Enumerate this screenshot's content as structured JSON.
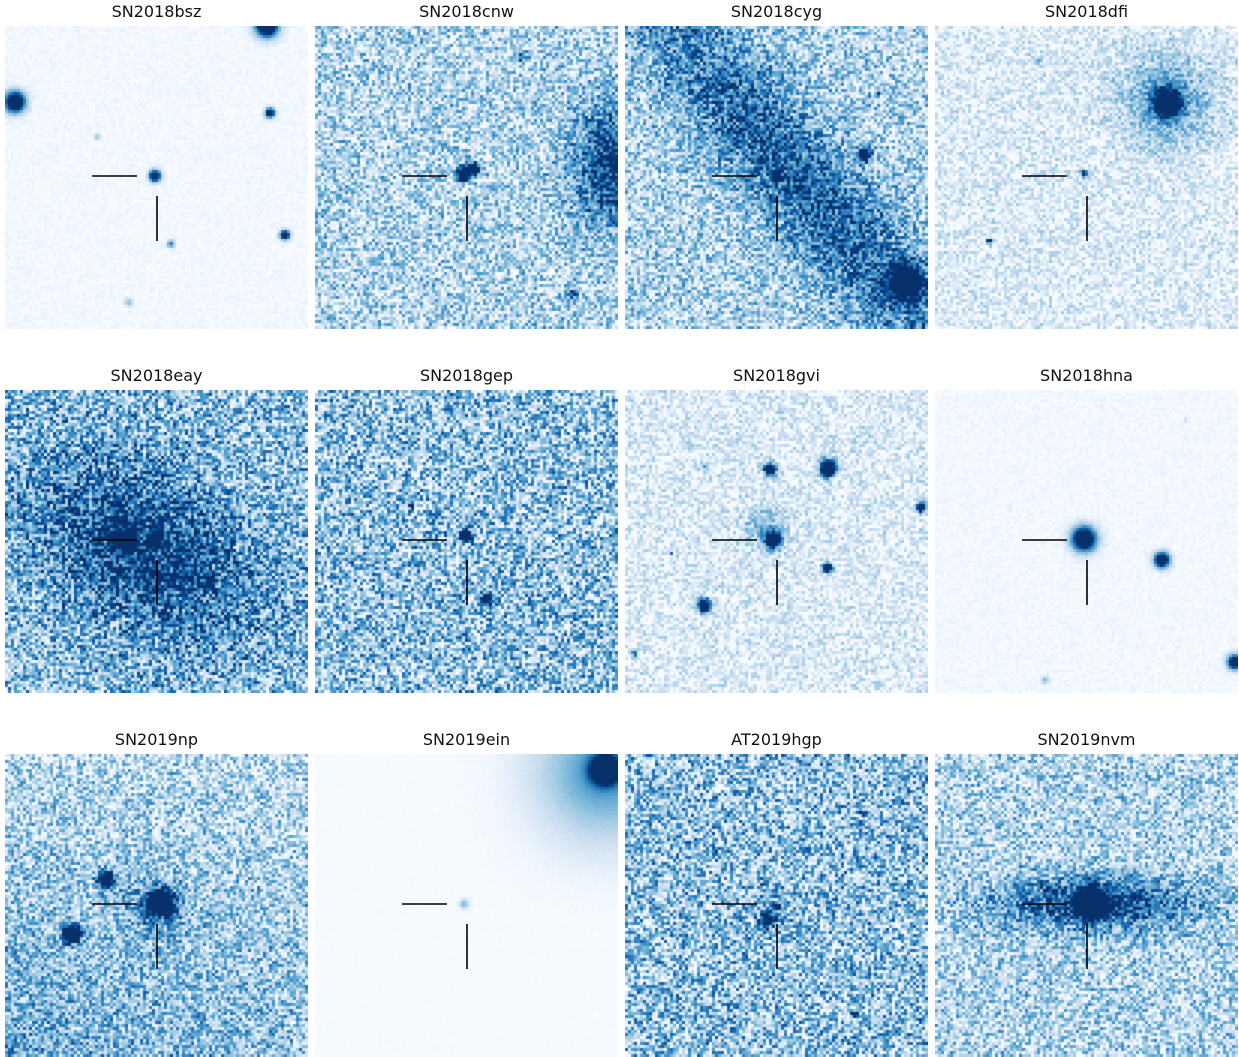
{
  "figure": {
    "colormap": "Blues",
    "marker_color": "#000000",
    "panels": [
      {
        "title": "SN2018bsz",
        "background": "faint",
        "host": null,
        "sources": [
          [
            150,
            150,
            6,
            1.0
          ],
          [
            262,
            0,
            12,
            1.0
          ],
          [
            10,
            76,
            11,
            1.0
          ],
          [
            265,
            87,
            5,
            0.95
          ],
          [
            280,
            209,
            5,
            0.95
          ],
          [
            166,
            218,
            4,
            0.45
          ],
          [
            92,
            111,
            3,
            0.3
          ],
          [
            124,
            276,
            4,
            0.3
          ]
        ]
      },
      {
        "title": "SN2018cnw",
        "background": "noisy",
        "host": [
          300,
          140,
          40,
          60,
          0,
          0.75
        ],
        "sources": [
          [
            148,
            148,
            7,
            0.95
          ],
          [
            158,
            143,
            8,
            0.6
          ],
          [
            206,
            31,
            5,
            0.4
          ],
          [
            258,
            268,
            6,
            0.4
          ]
        ]
      },
      {
        "title": "SN2018cyg",
        "background": "noisy",
        "host": [
          180,
          160,
          50,
          300,
          -40,
          0.55
        ],
        "sources": [
          [
            151,
            150,
            4,
            0.9
          ],
          [
            240,
            128,
            6,
            1.0
          ],
          [
            282,
            256,
            18,
            0.7
          ],
          [
            253,
            68,
            2,
            0.5
          ]
        ]
      },
      {
        "title": "SN2018dfi",
        "background": "noisy-light",
        "host": [
          232,
          75,
          45,
          45,
          0,
          0.45
        ],
        "sources": [
          [
            232,
            77,
            13,
            1.0
          ],
          [
            149,
            148,
            3,
            0.9
          ],
          [
            54,
            215,
            3,
            0.7
          ],
          [
            104,
            35,
            3,
            0.3
          ]
        ]
      },
      {
        "title": "SN2018eay",
        "background": "dense",
        "host": [
          140,
          160,
          120,
          75,
          35,
          0.6
        ],
        "sources": [
          [
            150,
            150,
            6,
            0.9
          ],
          [
            120,
            150,
            10,
            0.7
          ]
        ]
      },
      {
        "title": "SN2018gep",
        "background": "dense",
        "host": null,
        "sources": [
          [
            151,
            146,
            6,
            1.0
          ],
          [
            172,
            210,
            6,
            0.9
          ],
          [
            96,
            116,
            3,
            0.6
          ]
        ]
      },
      {
        "title": "SN2018gvi",
        "background": "noisy-light",
        "host": [
          140,
          140,
          20,
          20,
          0,
          0.35
        ],
        "sources": [
          [
            148,
            150,
            8,
            1.0
          ],
          [
            145,
            80,
            6,
            1.0
          ],
          [
            203,
            78,
            9,
            1.0
          ],
          [
            79,
            215,
            7,
            1.0
          ],
          [
            203,
            178,
            5,
            0.95
          ],
          [
            296,
            117,
            5,
            1.0
          ],
          [
            10,
            263,
            3,
            0.5
          ],
          [
            46,
            163,
            2,
            0.4
          ],
          [
            80,
            77,
            3,
            0.3
          ]
        ]
      },
      {
        "title": "SN2018hna",
        "background": "faint",
        "host": null,
        "sources": [
          [
            149,
            149,
            13,
            1.0
          ],
          [
            227,
            170,
            8,
            1.0
          ],
          [
            300,
            272,
            8,
            0.9
          ],
          [
            110,
            290,
            4,
            0.3
          ],
          [
            250,
            30,
            2,
            0.2
          ]
        ]
      },
      {
        "title": "SN2019np",
        "background": "noisy-gradient",
        "host": [
          150,
          150,
          30,
          25,
          0,
          0.35
        ],
        "sources": [
          [
            155,
            149,
            12,
            1.0
          ],
          [
            101,
            126,
            8,
            0.9
          ],
          [
            67,
            180,
            9,
            0.95
          ]
        ]
      },
      {
        "title": "SN2019ein",
        "background": "smooth",
        "host": [
          290,
          18,
          70,
          70,
          0,
          0.6
        ],
        "sources": [
          [
            290,
            16,
            14,
            1.0
          ],
          [
            149,
            150,
            5,
            0.3
          ]
        ]
      },
      {
        "title": "AT2019hgp",
        "background": "dense",
        "host": null,
        "sources": [
          [
            144,
            166,
            7,
            0.9
          ],
          [
            152,
            152,
            4,
            0.7
          ],
          [
            90,
            96,
            3,
            0.5
          ],
          [
            238,
            59,
            3,
            0.6
          ],
          [
            230,
            260,
            3,
            0.6
          ]
        ]
      },
      {
        "title": "SN2019nvm",
        "background": "noisy",
        "host": [
          160,
          150,
          95,
          25,
          0,
          0.7
        ],
        "sources": [
          [
            157,
            150,
            14,
            1.0
          ],
          [
            160,
            130,
            4,
            0.5
          ]
        ]
      }
    ]
  }
}
